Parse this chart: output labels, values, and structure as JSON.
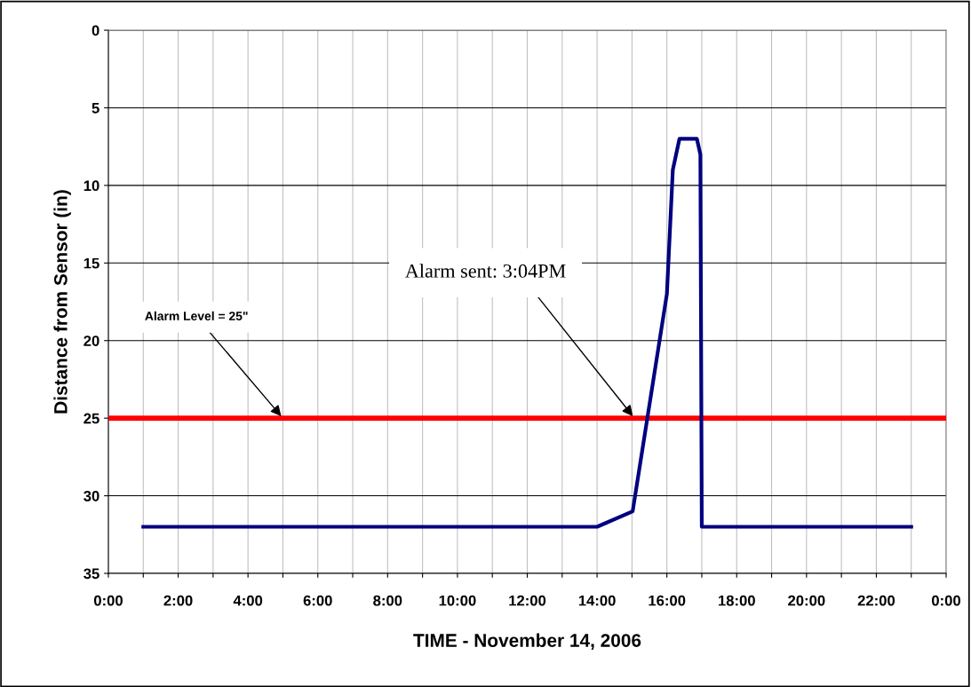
{
  "chart_data": {
    "type": "line",
    "xlabel": "TIME - November 14, 2006",
    "ylabel": "Distance from Sensor (in)",
    "x": [
      1,
      14,
      15.02,
      16,
      16.17,
      16.36,
      16.86,
      16.96,
      17,
      23
    ],
    "series": [
      {
        "color": "#000080",
        "values": [
          32,
          32,
          31,
          17,
          9,
          7,
          7,
          8,
          32,
          32
        ]
      }
    ],
    "xlim": [
      0,
      24
    ],
    "xticks": [
      {
        "value": 0,
        "label": "0:00"
      },
      {
        "value": 1,
        "label": null
      },
      {
        "value": 2,
        "label": "2:00"
      },
      {
        "value": 3,
        "label": null
      },
      {
        "value": 4,
        "label": "4:00"
      },
      {
        "value": 5,
        "label": null
      },
      {
        "value": 6,
        "label": "6:00"
      },
      {
        "value": 7,
        "label": null
      },
      {
        "value": 8,
        "label": "8:00"
      },
      {
        "value": 9,
        "label": null
      },
      {
        "value": 10,
        "label": "10:00"
      },
      {
        "value": 11,
        "label": null
      },
      {
        "value": 12,
        "label": "12:00"
      },
      {
        "value": 13,
        "label": null
      },
      {
        "value": 14,
        "label": "14:00"
      },
      {
        "value": 15,
        "label": null
      },
      {
        "value": 16,
        "label": "16:00"
      },
      {
        "value": 17,
        "label": null
      },
      {
        "value": 18,
        "label": "18:00"
      },
      {
        "value": 19,
        "label": null
      },
      {
        "value": 20,
        "label": "20:00"
      },
      {
        "value": 21,
        "label": null
      },
      {
        "value": 22,
        "label": "22:00"
      },
      {
        "value": 23,
        "label": null
      },
      {
        "value": 24,
        "label": "0:00"
      }
    ],
    "ylim": [
      35,
      0
    ],
    "yticks": [
      0,
      5,
      10,
      15,
      20,
      25,
      30,
      35
    ],
    "ref_lines": [
      {
        "axis": "y",
        "value": 25,
        "color": "#ff0000"
      }
    ],
    "annotations": [
      {
        "text": "Alarm Level = 25\"",
        "x": 5,
        "y": 25
      },
      {
        "text": "Alarm sent: 3:04PM",
        "x": 15.07,
        "y": 25
      }
    ],
    "grid": true,
    "marker": "none",
    "line_style": "solid",
    "legend": false
  }
}
